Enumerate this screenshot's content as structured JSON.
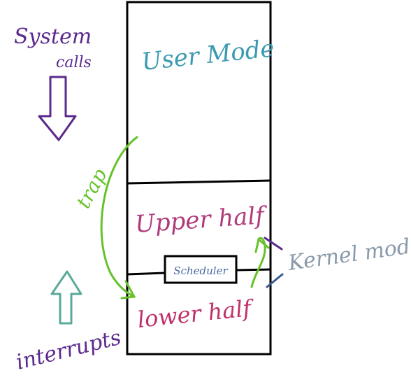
{
  "labels": {
    "system_calls_line1": "System",
    "system_calls_line2": "calls",
    "user_mode": "User Mode",
    "trap": "trap",
    "upper_half": "Upper half",
    "scheduler": "Scheduler",
    "lower_half": "lower half",
    "kernel_mode": "Kernel mode",
    "interrupts": "interrupts"
  },
  "colors": {
    "outline": "#000000",
    "purple": "#5b2a8c",
    "trap_green": "#66c22a",
    "user_mode": "#3a9ab0",
    "upper_half": "#b03a7a",
    "lower_half": "#c0306a",
    "kernel_mode": "#8a9aaa",
    "interrupts_arrow": "#5aa99a",
    "scheduler_text": "#4a6aa0"
  },
  "icons": {
    "down_arrow": "hollow-down-arrow-icon",
    "up_arrow": "hollow-up-arrow-icon",
    "trap_arrow": "curved-arrow-icon",
    "small_arrow": "curved-up-arrow-icon"
  }
}
